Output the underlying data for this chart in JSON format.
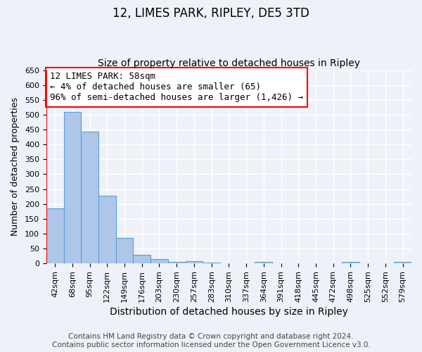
{
  "title": "12, LIMES PARK, RIPLEY, DE5 3TD",
  "subtitle": "Size of property relative to detached houses in Ripley",
  "xlabel": "Distribution of detached houses by size in Ripley",
  "ylabel": "Number of detached properties",
  "footer_line1": "Contains HM Land Registry data © Crown copyright and database right 2024.",
  "footer_line2": "Contains public sector information licensed under the Open Government Licence v3.0.",
  "bin_labels": [
    "42sqm",
    "68sqm",
    "95sqm",
    "122sqm",
    "149sqm",
    "176sqm",
    "203sqm",
    "230sqm",
    "257sqm",
    "283sqm",
    "310sqm",
    "337sqm",
    "364sqm",
    "391sqm",
    "418sqm",
    "445sqm",
    "472sqm",
    "498sqm",
    "525sqm",
    "552sqm",
    "579sqm"
  ],
  "bar_values": [
    185,
    510,
    443,
    228,
    85,
    28,
    14,
    5,
    8,
    4,
    0,
    0,
    6,
    0,
    0,
    0,
    0,
    5,
    0,
    0,
    5
  ],
  "bar_color": "#aec6e8",
  "bar_edge_color": "#5a9fd4",
  "ylim": [
    0,
    650
  ],
  "yticks": [
    0,
    50,
    100,
    150,
    200,
    250,
    300,
    350,
    400,
    450,
    500,
    550,
    600,
    650
  ],
  "annotation_text_line1": "12 LIMES PARK: 58sqm",
  "annotation_text_line2": "← 4% of detached houses are smaller (65)",
  "annotation_text_line3": "96% of semi-detached houses are larger (1,426) →",
  "background_color": "#eef2f8",
  "plot_bg_color": "#eef2f8",
  "grid_color": "#ffffff",
  "title_fontsize": 12,
  "subtitle_fontsize": 10,
  "xlabel_fontsize": 10,
  "ylabel_fontsize": 9,
  "tick_fontsize": 8,
  "annotation_fontsize": 9,
  "footer_fontsize": 7.5,
  "red_line_x": 0
}
